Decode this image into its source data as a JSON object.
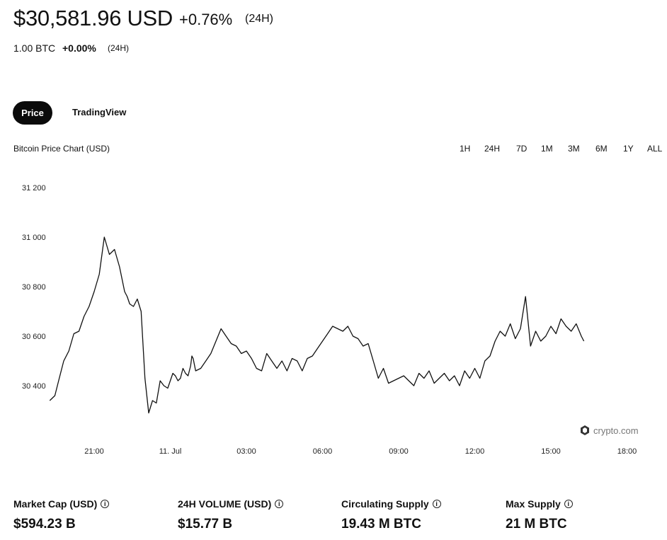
{
  "header": {
    "price": "$30,581.96 USD",
    "change": "+0.76%",
    "period": "(24H)",
    "btc_amount": "1.00 BTC",
    "btc_change": "+0.00%",
    "btc_period": "(24H)"
  },
  "tabs": {
    "price": "Price",
    "tradingview": "TradingView"
  },
  "chart_header": {
    "title": "Bitcoin Price Chart (USD)",
    "ranges": [
      "1H",
      "24H",
      "7D",
      "1M",
      "3M",
      "6M",
      "1Y",
      "ALL"
    ]
  },
  "watermark": "crypto.com",
  "chart_data": {
    "type": "line",
    "title": "Bitcoin Price Chart (USD)",
    "xlabel": "",
    "ylabel": "",
    "x_tick_labels": [
      "21:00",
      "11. Jul",
      "03:00",
      "06:00",
      "09:00",
      "12:00",
      "15:00",
      "18:00"
    ],
    "y_tick_labels": [
      "31 200",
      "31 000",
      "30 800",
      "30 600",
      "30 400"
    ],
    "y_ticks": [
      31200,
      31000,
      30800,
      30600,
      30400
    ],
    "ylim": [
      30280,
      31250
    ],
    "grid": false,
    "x_hours": [
      -1.75,
      -1.55,
      -1.4,
      -1.2,
      -1.0,
      -0.8,
      -0.6,
      -0.4,
      -0.2,
      0.0,
      0.2,
      0.4,
      0.6,
      0.8,
      1.0,
      1.1,
      1.2,
      1.3,
      1.4,
      1.55,
      1.7,
      1.85,
      2.0,
      2.15,
      2.3,
      2.45,
      2.6,
      2.75,
      2.9,
      3.0,
      3.1,
      3.2,
      3.3,
      3.4,
      3.5,
      3.6,
      3.7,
      3.8,
      3.85,
      3.9,
      4.0,
      4.2,
      4.4,
      4.6,
      4.8,
      5.0,
      5.2,
      5.4,
      5.6,
      5.8,
      6.0,
      6.2,
      6.4,
      6.6,
      6.8,
      7.0,
      7.2,
      7.4,
      7.6,
      7.8,
      8.0,
      8.2,
      8.4,
      8.6,
      8.8,
      9.0,
      9.2,
      9.4,
      9.6,
      9.8,
      10.0,
      10.2,
      10.4,
      10.6,
      10.8,
      11.0,
      11.2,
      11.4,
      11.6,
      11.8,
      12.0,
      12.2,
      12.4,
      12.6,
      12.8,
      13.0,
      13.2,
      13.4,
      13.6,
      13.8,
      14.0,
      14.2,
      14.4,
      14.6,
      14.8,
      15.0,
      15.2,
      15.4,
      15.6,
      15.8,
      16.0,
      16.2,
      16.4,
      16.6,
      16.8,
      17.0,
      17.2,
      17.4,
      17.6,
      17.8,
      18.0,
      18.2,
      18.4,
      18.6,
      18.8,
      19.0,
      19.2,
      19.3
    ],
    "values": [
      30340,
      30360,
      30420,
      30500,
      30540,
      30610,
      30620,
      30680,
      30720,
      30780,
      30850,
      31000,
      30930,
      30950,
      30880,
      30830,
      30780,
      30760,
      30730,
      30720,
      30750,
      30700,
      30430,
      30290,
      30340,
      30330,
      30420,
      30400,
      30390,
      30420,
      30450,
      30440,
      30420,
      30430,
      30470,
      30450,
      30440,
      30480,
      30520,
      30510,
      30460,
      30470,
      30500,
      30530,
      30580,
      30630,
      30600,
      30570,
      30560,
      30530,
      30540,
      30510,
      30470,
      30460,
      30530,
      30500,
      30470,
      30500,
      30460,
      30510,
      30500,
      30460,
      30510,
      30520,
      30550,
      30580,
      30610,
      30640,
      30630,
      30620,
      30640,
      30600,
      30590,
      30560,
      30570,
      30500,
      30430,
      30470,
      30410,
      30420,
      30430,
      30440,
      30420,
      30400,
      30450,
      30430,
      30460,
      30410,
      30430,
      30450,
      30420,
      30440,
      30400,
      30460,
      30430,
      30470,
      30430,
      30500,
      30520,
      30580,
      30620,
      30600,
      30650,
      30590,
      30630,
      30760,
      30560,
      30620,
      30580,
      30600,
      30640,
      30610,
      30670,
      30640,
      30620,
      30650,
      30600,
      30580
    ]
  },
  "stats": [
    {
      "label": "Market Cap (USD)",
      "value": "$594.23 B"
    },
    {
      "label": "24H VOLUME (USD)",
      "value": "$15.77 B"
    },
    {
      "label": "Circulating Supply",
      "value": "19.43 M BTC"
    },
    {
      "label": "Max Supply",
      "value": "21 M BTC"
    }
  ],
  "icons": {
    "info": "info-icon",
    "logo": "crypto-logo-icon"
  },
  "colors": {
    "line": "#111111",
    "active_tab_bg": "#0b0b0b",
    "text": "#111111",
    "watermark": "#777777"
  }
}
